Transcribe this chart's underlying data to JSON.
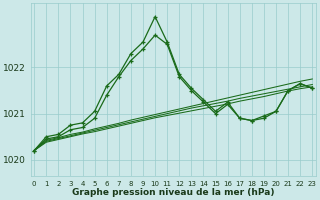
{
  "hours": [
    0,
    1,
    2,
    3,
    4,
    5,
    6,
    7,
    8,
    9,
    10,
    11,
    12,
    13,
    14,
    15,
    16,
    17,
    18,
    19,
    20,
    21,
    22,
    23
  ],
  "y_jagged1": [
    1020.2,
    1020.5,
    1020.55,
    1020.75,
    1020.8,
    1021.05,
    1021.6,
    1021.85,
    1022.3,
    1022.55,
    1023.1,
    1022.55,
    1021.85,
    1021.55,
    1021.3,
    1021.05,
    1021.25,
    1020.9,
    1020.85,
    1020.95,
    1021.05,
    1021.5,
    1021.65,
    1021.55
  ],
  "y_jagged2": [
    1020.2,
    1020.45,
    1020.5,
    1020.65,
    1020.7,
    1020.9,
    1021.4,
    1021.8,
    1022.15,
    1022.4,
    1022.7,
    1022.5,
    1021.8,
    1021.5,
    1021.25,
    1021.0,
    1021.2,
    1020.9,
    1020.85,
    1020.9,
    1021.05,
    1021.5,
    1021.65,
    1021.55
  ],
  "y_slow1": [
    1020.2,
    1020.42,
    1020.48,
    1020.55,
    1020.6,
    1020.67,
    1020.73,
    1020.79,
    1020.86,
    1020.92,
    1020.98,
    1021.04,
    1021.1,
    1021.16,
    1021.22,
    1021.28,
    1021.34,
    1021.4,
    1021.46,
    1021.52,
    1021.58,
    1021.64,
    1021.7,
    1021.75
  ],
  "y_slow2": [
    1020.2,
    1020.4,
    1020.46,
    1020.52,
    1020.58,
    1020.64,
    1020.7,
    1020.76,
    1020.82,
    1020.88,
    1020.94,
    1021.0,
    1021.06,
    1021.12,
    1021.17,
    1021.22,
    1021.27,
    1021.33,
    1021.38,
    1021.43,
    1021.48,
    1021.53,
    1021.58,
    1021.63
  ],
  "y_slow3": [
    1020.2,
    1020.38,
    1020.44,
    1020.5,
    1020.56,
    1020.61,
    1020.67,
    1020.73,
    1020.79,
    1020.85,
    1020.91,
    1020.96,
    1021.01,
    1021.06,
    1021.11,
    1021.16,
    1021.21,
    1021.27,
    1021.32,
    1021.37,
    1021.43,
    1021.49,
    1021.54,
    1021.58
  ],
  "bg_color": "#cce8e8",
  "grid_color": "#99cccc",
  "line_color": "#1a6b1a",
  "ylabel_ticks": [
    1020,
    1021,
    1022
  ],
  "ylim": [
    1019.65,
    1023.4
  ],
  "xlim": [
    -0.3,
    23.3
  ],
  "xlabel": "Graphe pression niveau de la mer (hPa)",
  "label_color": "#1a3a1a"
}
